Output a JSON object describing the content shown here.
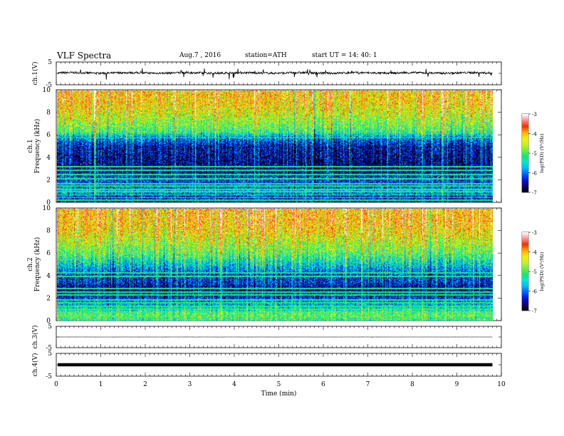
{
  "header": {
    "title": "VLF Spectra",
    "date": "Aug.7 , 2016",
    "station": "station=ATH",
    "start": "start UT = 14: 40: 1"
  },
  "colors": {
    "cmap": [
      "#000000",
      "#1a0070",
      "#0018d8",
      "#0060ff",
      "#00b8ff",
      "#00e8d0",
      "#10e878",
      "#70f040",
      "#c8f028",
      "#f0f000",
      "#ffa800",
      "#f03000",
      "#ff9090",
      "#ffffff"
    ],
    "waveform": "#000000",
    "axis": "#000000"
  },
  "chart_data": [
    {
      "type": "line",
      "name": "ch1-waveform",
      "ylabel": "ch.1(V)",
      "ylim": [
        -5,
        5
      ],
      "yticks": [
        "5",
        "-5"
      ],
      "xlim": [
        0,
        10
      ],
      "baseline": 0.2,
      "note": "noisy waveform with spikes, amplitude mostly within ±1 V"
    },
    {
      "type": "heatmap",
      "name": "ch1-spectrogram",
      "ylabel_channel": "ch.1",
      "ylabel": "Frequency (kHz)",
      "ylim": [
        0,
        10
      ],
      "yticks": [
        "0",
        "2",
        "4",
        "6",
        "8",
        "10"
      ],
      "xlim": [
        0,
        9.8
      ],
      "colorbar": {
        "label": "log(PSD) (V²/Hz)",
        "range": [
          -7,
          -3
        ],
        "ticks": [
          "-3",
          "-4",
          "-5",
          "-6",
          "-7"
        ]
      },
      "profile": [
        [
          0.0,
          -6.6
        ],
        [
          0.4,
          -6.4
        ],
        [
          1.0,
          -5.8
        ],
        [
          1.6,
          -6.3
        ],
        [
          2.2,
          -6.2
        ],
        [
          3.0,
          -6.7
        ],
        [
          4.0,
          -6.6
        ],
        [
          5.0,
          -6.5
        ],
        [
          5.8,
          -5.9
        ],
        [
          6.3,
          -5.1
        ],
        [
          7.0,
          -4.8
        ],
        [
          8.0,
          -4.4
        ],
        [
          9.0,
          -4.1
        ],
        [
          10.0,
          -4.0
        ]
      ],
      "lines_khz": [
        0.2,
        0.45,
        0.7,
        1.0,
        1.2,
        1.5,
        1.7,
        2.15,
        2.5,
        2.9,
        3.2,
        5.8
      ]
    },
    {
      "type": "heatmap",
      "name": "ch2-spectrogram",
      "ylabel_channel": "ch.2",
      "ylabel": "Frequency (kHz)",
      "ylim": [
        0,
        10
      ],
      "yticks": [
        "0",
        "2",
        "4",
        "6",
        "8",
        "10"
      ],
      "xlim": [
        0,
        9.8
      ],
      "colorbar": {
        "label": "log(PSD) (V²/Hz)",
        "range": [
          -7,
          -3
        ],
        "ticks": [
          "-3",
          "-4",
          "-5",
          "-6",
          "-7"
        ]
      },
      "profile": [
        [
          0.0,
          -5.2
        ],
        [
          0.6,
          -5.0
        ],
        [
          1.2,
          -5.6
        ],
        [
          1.6,
          -5.9
        ],
        [
          2.2,
          -6.4
        ],
        [
          2.8,
          -6.7
        ],
        [
          3.5,
          -6.3
        ],
        [
          4.2,
          -6.2
        ],
        [
          5.0,
          -5.6
        ],
        [
          6.0,
          -5.0
        ],
        [
          7.0,
          -4.6
        ],
        [
          8.0,
          -4.2
        ],
        [
          9.0,
          -4.0
        ],
        [
          10.0,
          -4.0
        ]
      ],
      "lines_khz": [
        0.4,
        0.8,
        1.05,
        1.3,
        1.6,
        1.9,
        2.3,
        2.6,
        2.9,
        4.0,
        4.3
      ]
    },
    {
      "type": "line",
      "name": "ch3-waveform",
      "ylabel": "ch.3(V)",
      "ylim": [
        -5,
        5
      ],
      "yticks": [
        "5",
        "-5"
      ],
      "baseline": 0.0,
      "note": "nearly flat trace"
    },
    {
      "type": "line",
      "name": "ch4-waveform",
      "ylabel": "ch.4(V)",
      "ylim": [
        -5,
        5
      ],
      "yticks": [
        "5",
        "-5"
      ],
      "baseline": 0.0,
      "note": "thick flat trace"
    }
  ],
  "xaxis": {
    "label": "Time (min)",
    "range": [
      0,
      10
    ],
    "ticks": [
      "0",
      "1",
      "2",
      "3",
      "4",
      "5",
      "6",
      "7",
      "8",
      "9",
      "10"
    ]
  }
}
